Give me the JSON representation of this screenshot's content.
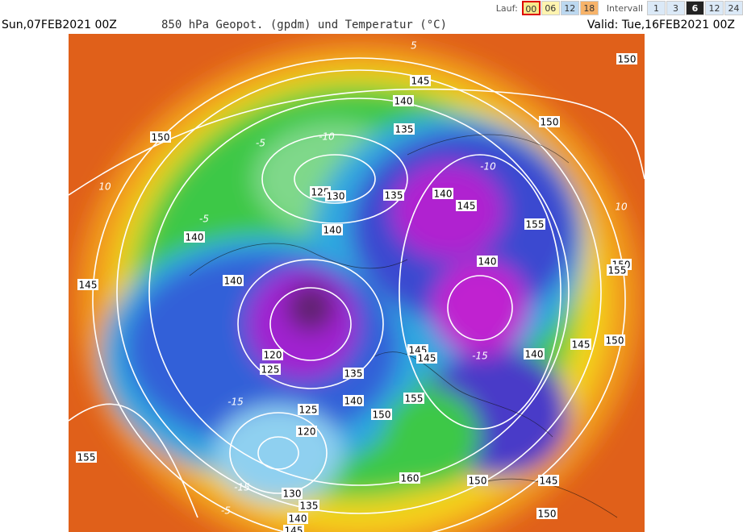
{
  "toolbar": {
    "run_label": "Lauf:",
    "runs": [
      "00",
      "06",
      "12",
      "18"
    ],
    "interval_label": "Intervall",
    "intervals": [
      "1",
      "3",
      "6",
      "12",
      "24"
    ]
  },
  "header": {
    "init": "Sun,07FEB2021 00Z",
    "title": "850 hPa Geopot. (gpdm) und Temperatur (°C)",
    "valid": "Valid: Tue,16FEB2021 00Z"
  },
  "map": {
    "contour_labels": [
      "150",
      "145",
      "140",
      "135",
      "150",
      "150",
      "125",
      "130",
      "135",
      "140",
      "145",
      "155",
      "140",
      "140",
      "140",
      "150",
      "155",
      "145",
      "140",
      "120",
      "125",
      "145",
      "145",
      "140",
      "145",
      "150",
      "135",
      "140",
      "155",
      "150",
      "125",
      "120",
      "155",
      "160",
      "150",
      "145",
      "130",
      "135",
      "140",
      "145",
      "150"
    ],
    "temperature_labels": [
      "-10",
      "-5",
      "5",
      "-5",
      "-10",
      "10",
      "-15",
      "-15",
      "-5",
      "-15",
      "10"
    ]
  }
}
